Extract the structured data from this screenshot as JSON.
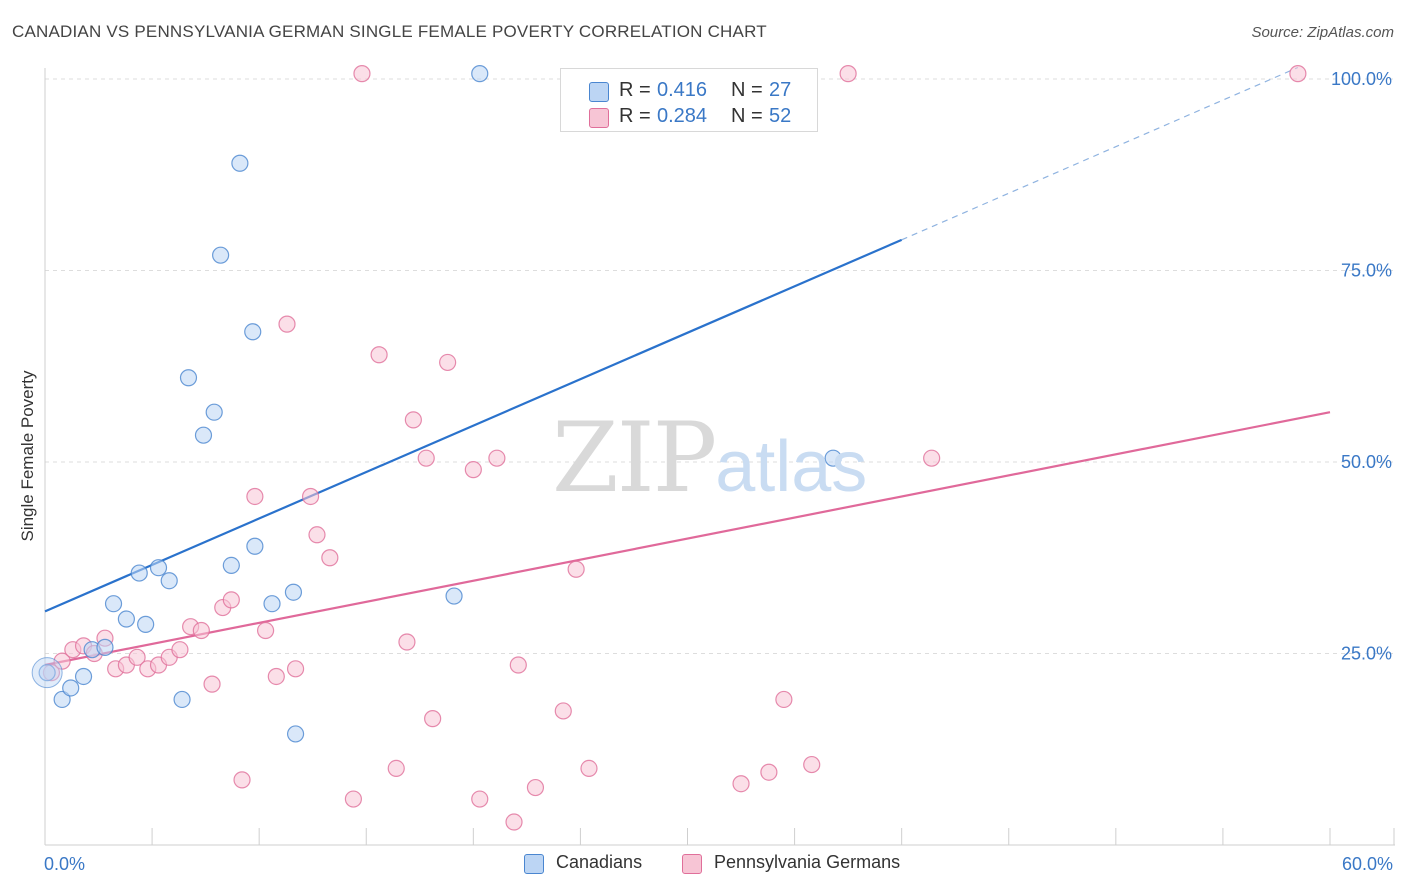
{
  "title": "CANADIAN VS PENNSYLVANIA GERMAN SINGLE FEMALE POVERTY CORRELATION CHART",
  "source": "Source: ZipAtlas.com",
  "watermark": {
    "zip": "ZIP",
    "atlas": "atlas"
  },
  "colors": {
    "canadians": "#4a86d0",
    "canadians_fill": "#bcd5f4",
    "pennsylvania": "#e06f9a",
    "pennsylvania_fill": "#f7c5d5",
    "value_text": "#3a78c6",
    "grid": "#dddddd"
  },
  "stats": [
    {
      "r_label": "R = ",
      "r_value": "0.416",
      "n_label": "N = ",
      "n_value": "27"
    },
    {
      "r_label": "R = ",
      "r_value": "0.284",
      "n_label": "N = ",
      "n_value": "52"
    }
  ],
  "legend": [
    {
      "label": "Canadians"
    },
    {
      "label": "Pennsylvania Germans"
    }
  ],
  "chart_data": {
    "type": "scatter",
    "title": "CANADIAN VS PENNSYLVANIA GERMAN SINGLE FEMALE POVERTY CORRELATION CHART",
    "xlabel": "",
    "ylabel": "Single Female Poverty",
    "xlim": [
      0,
      60
    ],
    "ylim": [
      0,
      102
    ],
    "x_tick_labels": [
      "0.0%",
      "60.0%"
    ],
    "y_ticks": [
      25,
      50,
      75,
      100
    ],
    "y_tick_labels": [
      "25.0%",
      "50.0%",
      "75.0%",
      "100.0%"
    ],
    "grid": true,
    "legend_position": "bottom-center",
    "series": [
      {
        "name": "Canadians",
        "points": [
          [
            0.1,
            22.5
          ],
          [
            0.8,
            19.0
          ],
          [
            1.2,
            20.5
          ],
          [
            1.8,
            22.0
          ],
          [
            2.2,
            25.5
          ],
          [
            2.8,
            25.8
          ],
          [
            3.2,
            31.5
          ],
          [
            3.8,
            29.5
          ],
          [
            4.4,
            35.5
          ],
          [
            4.7,
            28.8
          ],
          [
            5.3,
            36.2
          ],
          [
            5.8,
            34.5
          ],
          [
            6.4,
            19.0
          ],
          [
            6.7,
            61.0
          ],
          [
            7.4,
            53.5
          ],
          [
            7.9,
            56.5
          ],
          [
            8.2,
            77.0
          ],
          [
            8.7,
            36.5
          ],
          [
            9.1,
            89.0
          ],
          [
            9.7,
            67.0
          ],
          [
            9.8,
            39.0
          ],
          [
            10.6,
            31.5
          ],
          [
            11.6,
            33.0
          ],
          [
            11.7,
            14.5
          ],
          [
            19.1,
            32.5
          ],
          [
            20.3,
            100.7
          ],
          [
            36.8,
            50.5
          ]
        ],
        "trend": {
          "x": [
            0,
            40
          ],
          "y": [
            30.5,
            79.0
          ]
        },
        "trend_extension": {
          "x": [
            40,
            58.5
          ],
          "y": [
            79.0,
            101.5
          ]
        }
      },
      {
        "name": "Pennsylvania Germans",
        "points": [
          [
            0.3,
            22.5
          ],
          [
            0.8,
            24.0
          ],
          [
            1.3,
            25.5
          ],
          [
            1.8,
            26.0
          ],
          [
            2.3,
            25.0
          ],
          [
            2.8,
            27.0
          ],
          [
            3.3,
            23.0
          ],
          [
            3.8,
            23.5
          ],
          [
            4.3,
            24.5
          ],
          [
            4.8,
            23.0
          ],
          [
            5.3,
            23.5
          ],
          [
            5.8,
            24.5
          ],
          [
            6.3,
            25.5
          ],
          [
            6.8,
            28.5
          ],
          [
            7.3,
            28.0
          ],
          [
            7.8,
            21.0
          ],
          [
            8.3,
            31.0
          ],
          [
            8.7,
            32.0
          ],
          [
            9.2,
            8.5
          ],
          [
            9.8,
            45.5
          ],
          [
            10.3,
            28.0
          ],
          [
            10.8,
            22.0
          ],
          [
            11.3,
            68.0
          ],
          [
            11.7,
            23.0
          ],
          [
            12.4,
            45.5
          ],
          [
            12.7,
            40.5
          ],
          [
            13.3,
            37.5
          ],
          [
            14.4,
            6.0
          ],
          [
            14.8,
            100.7
          ],
          [
            15.6,
            64.0
          ],
          [
            16.4,
            10.0
          ],
          [
            16.9,
            26.5
          ],
          [
            17.2,
            55.5
          ],
          [
            17.8,
            50.5
          ],
          [
            18.1,
            16.5
          ],
          [
            18.8,
            63.0
          ],
          [
            20.0,
            49.0
          ],
          [
            20.3,
            6.0
          ],
          [
            21.1,
            50.5
          ],
          [
            21.9,
            3.0
          ],
          [
            22.1,
            23.5
          ],
          [
            22.9,
            7.5
          ],
          [
            24.2,
            17.5
          ],
          [
            24.8,
            36.0
          ],
          [
            25.4,
            10.0
          ],
          [
            32.5,
            8.0
          ],
          [
            33.8,
            9.5
          ],
          [
            34.5,
            19.0
          ],
          [
            35.8,
            10.5
          ],
          [
            37.5,
            100.7
          ],
          [
            41.4,
            50.5
          ],
          [
            58.5,
            100.7
          ]
        ],
        "trend": {
          "x": [
            0,
            60
          ],
          "y": [
            23.5,
            56.5
          ]
        }
      }
    ]
  }
}
